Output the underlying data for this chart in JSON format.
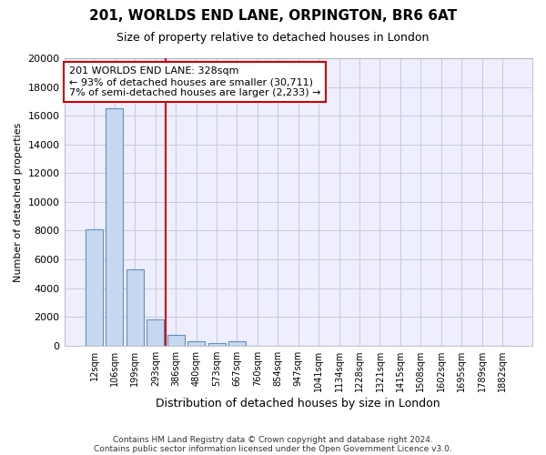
{
  "title1": "201, WORLDS END LANE, ORPINGTON, BR6 6AT",
  "title2": "Size of property relative to detached houses in London",
  "xlabel": "Distribution of detached houses by size in London",
  "ylabel": "Number of detached properties",
  "categories": [
    "12sqm",
    "106sqm",
    "199sqm",
    "293sqm",
    "386sqm",
    "480sqm",
    "573sqm",
    "667sqm",
    "760sqm",
    "854sqm",
    "947sqm",
    "1041sqm",
    "1134sqm",
    "1228sqm",
    "1321sqm",
    "1415sqm",
    "1508sqm",
    "1602sqm",
    "1695sqm",
    "1789sqm",
    "1882sqm"
  ],
  "values": [
    8100,
    16500,
    5300,
    1800,
    750,
    300,
    200,
    300,
    0,
    0,
    0,
    0,
    0,
    0,
    0,
    0,
    0,
    0,
    0,
    0,
    0
  ],
  "bar_color": "#c5d8f0",
  "bar_edge_color": "#6090c0",
  "vline_x": 3.5,
  "vline_color": "#cc0000",
  "annotation_line1": "201 WORLDS END LANE: 328sqm",
  "annotation_line2": "← 93% of detached houses are smaller (30,711)",
  "annotation_line3": "7% of semi-detached houses are larger (2,233) →",
  "annotation_box_color": "#cc0000",
  "ylim": [
    0,
    20000
  ],
  "yticks": [
    0,
    2000,
    4000,
    6000,
    8000,
    10000,
    12000,
    14000,
    16000,
    18000,
    20000
  ],
  "grid_color": "#c8c8dc",
  "background_color": "#eeeeff",
  "footer1": "Contains HM Land Registry data © Crown copyright and database right 2024.",
  "footer2": "Contains public sector information licensed under the Open Government Licence v3.0."
}
